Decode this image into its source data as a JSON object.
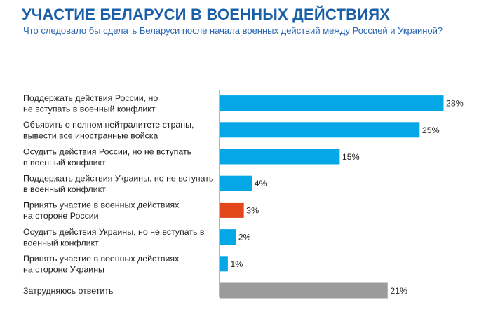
{
  "title": "УЧАСТИЕ БЕЛАРУСИ В ВОЕННЫХ ДЕЙСТВИЯХ",
  "subtitle": "Что следовало бы сделать Беларуси после начала военных действий между Россией и Украиной?",
  "colors": {
    "title": "#1a5fa8",
    "subtitle": "#2a66b0",
    "default": "#05a7e6",
    "russia_participation": "#e4471c",
    "unsure": "#9b9b9b",
    "axis": "#6b6b6b"
  },
  "chart_data": {
    "type": "bar",
    "orientation": "horizontal",
    "categories": [
      [
        "Поддержать действия России, но",
        "не вступать в военный конфликт"
      ],
      [
        "Объявить о полном нейтралитете страны,",
        "вывести все иностранные войска"
      ],
      [
        "Осудить действия России, но не вступать",
        "в военный конфликт"
      ],
      [
        "Поддержать действия Украины, но не вступать",
        "в военный конфликт"
      ],
      [
        "Принять участие в военных действиях",
        "на стороне России"
      ],
      [
        "Осудить действия Украины, но не вступать в",
        "военный конфликт"
      ],
      [
        "Принять участие в военных действиях",
        "на стороне Украины"
      ],
      [
        "Затрудняюсь ответить"
      ]
    ],
    "values": [
      28,
      25,
      15,
      4,
      3,
      2,
      1,
      21
    ],
    "value_labels": [
      "28%",
      "25%",
      "15%",
      "4%",
      "3%",
      "2%",
      "1%",
      "21%"
    ],
    "bar_colors": [
      "#05a7e6",
      "#05a7e6",
      "#05a7e6",
      "#05a7e6",
      "#e4471c",
      "#05a7e6",
      "#05a7e6",
      "#9b9b9b"
    ],
    "unit": "%",
    "xlim": [
      0,
      28
    ],
    "grid": false,
    "legend": "none"
  }
}
